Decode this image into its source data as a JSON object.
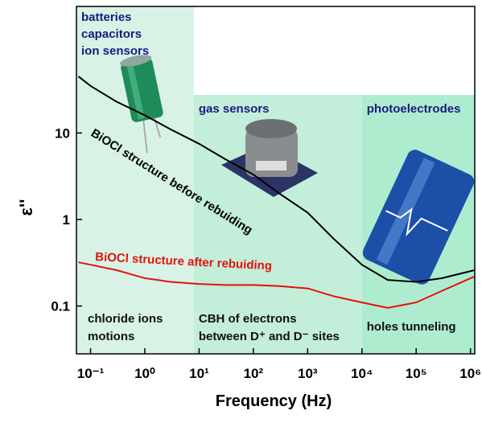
{
  "chart_data": {
    "type": "line",
    "xlabel": "Frequency (Hz)",
    "ylabel": "ε''",
    "xscale": "log",
    "yscale": "log",
    "xlim": [
      0.055,
      1200000
    ],
    "ylim": [
      0.028,
      290
    ],
    "xticks": [
      {
        "value": 0.1,
        "label": "10⁻¹"
      },
      {
        "value": 1,
        "label": "10⁰"
      },
      {
        "value": 10,
        "label": "10¹"
      },
      {
        "value": 100,
        "label": "10²"
      },
      {
        "value": 1000,
        "label": "10³"
      },
      {
        "value": 10000,
        "label": "10⁴"
      },
      {
        "value": 100000,
        "label": "10⁵"
      },
      {
        "value": 1000000,
        "label": "10⁶"
      }
    ],
    "yticks": [
      0.1,
      1,
      10
    ],
    "regions": [
      {
        "from": 0.055,
        "to": 8,
        "color": "#d8f3e6",
        "top_label": [
          "batteries",
          "capacitors",
          "ion sensors"
        ],
        "bottom_label": [
          "chloride ions",
          "motions"
        ]
      },
      {
        "from": 8,
        "to": 10000,
        "color": "#c3eed9",
        "top_label": [
          "gas sensors"
        ],
        "bottom_label": [
          "CBH of electrons",
          "between D⁺ and D⁻ sites"
        ]
      },
      {
        "from": 10000,
        "to": 1200000,
        "color": "#aeeccf",
        "top_label": [
          "photoelectrodes"
        ],
        "bottom_label": [
          "holes tunneling"
        ]
      }
    ],
    "x": [
      0.06,
      0.1,
      0.3,
      1,
      3,
      10,
      30,
      100,
      300,
      1000,
      3000,
      10000,
      30000,
      100000,
      300000,
      1200000
    ],
    "series": [
      {
        "name": "BiOCl structure before rebuiding",
        "color": "#000000",
        "values": [
          45,
          35,
          23,
          16,
          11,
          7.5,
          5,
          3.3,
          2,
          1.2,
          0.6,
          0.3,
          0.2,
          0.19,
          0.21,
          0.26
        ]
      },
      {
        "name": "BiOCl structure after rebuiding",
        "color": "#e3120b",
        "values": [
          0.32,
          0.3,
          0.26,
          0.21,
          0.19,
          0.18,
          0.175,
          0.175,
          0.17,
          0.16,
          0.13,
          0.11,
          0.095,
          0.11,
          0.15,
          0.22
        ]
      }
    ]
  }
}
